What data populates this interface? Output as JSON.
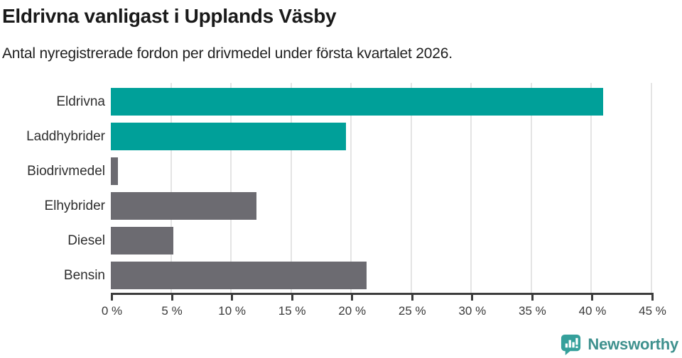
{
  "header": {
    "title": "Eldrivna vanligast i Upplands Väsby",
    "subtitle": "Antal nyregistrerade fordon per drivmedel under första kvartalet 2026."
  },
  "chart_data": {
    "type": "bar",
    "orientation": "horizontal",
    "title": "Eldrivna vanligast i Upplands Väsby",
    "subtitle": "Antal nyregistrerade fordon per drivmedel under första kvartalet 2026.",
    "categories": [
      "Eldrivna",
      "Laddhybrider",
      "Biodrivmedel",
      "Elhybrider",
      "Diesel",
      "Bensin"
    ],
    "values": [
      41.0,
      19.6,
      0.6,
      12.1,
      5.2,
      21.3
    ],
    "unit": "%",
    "bar_colors": [
      "#00a099",
      "#00a099",
      "#6c6b71",
      "#6c6b71",
      "#6c6b71",
      "#6c6b71"
    ],
    "xlabel": "",
    "ylabel": "",
    "xlim": [
      0,
      45
    ],
    "x_ticks": [
      0,
      5,
      10,
      15,
      20,
      25,
      30,
      35,
      40,
      45
    ],
    "x_tick_labels": [
      "0 %",
      "5 %",
      "10 %",
      "15 %",
      "20 %",
      "25 %",
      "30 %",
      "35 %",
      "40 %",
      "45 %"
    ],
    "grid": "vertical",
    "legend": "none"
  },
  "colors": {
    "accent_teal": "#00a099",
    "bar_gray": "#6c6b71",
    "gridline": "#e4e4e4",
    "axis": "#3c3c3c",
    "logo_teal": "#3f918e"
  },
  "footer": {
    "brand": "Newsworthy"
  }
}
